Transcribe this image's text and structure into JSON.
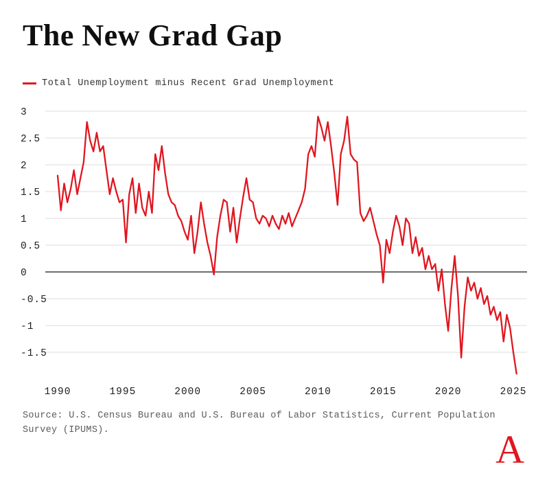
{
  "title": "The New Grad Gap",
  "legend": {
    "label": "Total Unemployment minus Recent Grad Unemployment"
  },
  "source": {
    "text": "Source: U.S. Census Bureau and U.S. Bureau of Labor Statistics, Current Population Survey (IPUMS)."
  },
  "logo": {
    "letter": "A"
  },
  "colors": {
    "line": "#e0161f",
    "grid": "#dcdcdc",
    "zero_line": "#3d3d3d",
    "axis_text": "#1c1c1c",
    "source_text": "#5a5a5a"
  },
  "chart_data": {
    "type": "line",
    "title": "The New Grad Gap",
    "xlabel": "",
    "ylabel": "",
    "xlim": [
      1989.5,
      2026
    ],
    "ylim": [
      -2,
      3
    ],
    "x_ticks": [
      1990,
      1995,
      2000,
      2005,
      2010,
      2015,
      2020,
      2025
    ],
    "y_ticks": [
      3,
      2.5,
      2,
      1.5,
      1,
      0.5,
      0,
      -0.5,
      -1,
      -1.5
    ],
    "grid": "horizontal",
    "zero_line": true,
    "legend_position": "top-left",
    "series": [
      {
        "name": "Total Unemployment minus Recent Grad Unemployment",
        "color": "#e0161f",
        "points": [
          [
            1990,
            1.8
          ],
          [
            1990.25,
            1.15
          ],
          [
            1990.5,
            1.65
          ],
          [
            1990.75,
            1.3
          ],
          [
            1991,
            1.55
          ],
          [
            1991.25,
            1.9
          ],
          [
            1991.5,
            1.45
          ],
          [
            1991.75,
            1.75
          ],
          [
            1992,
            2.05
          ],
          [
            1992.25,
            2.8
          ],
          [
            1992.5,
            2.45
          ],
          [
            1992.75,
            2.25
          ],
          [
            1993,
            2.6
          ],
          [
            1993.25,
            2.25
          ],
          [
            1993.5,
            2.35
          ],
          [
            1993.75,
            1.9
          ],
          [
            1994,
            1.45
          ],
          [
            1994.25,
            1.75
          ],
          [
            1994.5,
            1.5
          ],
          [
            1994.75,
            1.3
          ],
          [
            1995,
            1.35
          ],
          [
            1995.25,
            0.55
          ],
          [
            1995.5,
            1.45
          ],
          [
            1995.75,
            1.75
          ],
          [
            1996,
            1.1
          ],
          [
            1996.25,
            1.65
          ],
          [
            1996.5,
            1.2
          ],
          [
            1996.75,
            1.05
          ],
          [
            1997,
            1.5
          ],
          [
            1997.25,
            1.1
          ],
          [
            1997.5,
            2.2
          ],
          [
            1997.75,
            1.9
          ],
          [
            1998,
            2.35
          ],
          [
            1998.25,
            1.85
          ],
          [
            1998.5,
            1.45
          ],
          [
            1998.75,
            1.3
          ],
          [
            1999,
            1.25
          ],
          [
            1999.25,
            1.05
          ],
          [
            1999.5,
            0.95
          ],
          [
            1999.75,
            0.75
          ],
          [
            2000,
            0.6
          ],
          [
            2000.25,
            1.05
          ],
          [
            2000.5,
            0.35
          ],
          [
            2000.75,
            0.75
          ],
          [
            2001,
            1.3
          ],
          [
            2001.25,
            0.9
          ],
          [
            2001.5,
            0.55
          ],
          [
            2001.75,
            0.3
          ],
          [
            2002,
            -0.05
          ],
          [
            2002.25,
            0.65
          ],
          [
            2002.5,
            1.05
          ],
          [
            2002.75,
            1.35
          ],
          [
            2003,
            1.3
          ],
          [
            2003.25,
            0.75
          ],
          [
            2003.5,
            1.2
          ],
          [
            2003.75,
            0.55
          ],
          [
            2004,
            1.0
          ],
          [
            2004.25,
            1.4
          ],
          [
            2004.5,
            1.75
          ],
          [
            2004.75,
            1.35
          ],
          [
            2005,
            1.3
          ],
          [
            2005.25,
            1.0
          ],
          [
            2005.5,
            0.9
          ],
          [
            2005.75,
            1.05
          ],
          [
            2006,
            1.0
          ],
          [
            2006.25,
            0.85
          ],
          [
            2006.5,
            1.05
          ],
          [
            2006.75,
            0.9
          ],
          [
            2007,
            0.8
          ],
          [
            2007.25,
            1.05
          ],
          [
            2007.5,
            0.9
          ],
          [
            2007.75,
            1.1
          ],
          [
            2008,
            0.85
          ],
          [
            2008.25,
            1.0
          ],
          [
            2008.5,
            1.15
          ],
          [
            2008.75,
            1.3
          ],
          [
            2009,
            1.55
          ],
          [
            2009.25,
            2.2
          ],
          [
            2009.5,
            2.35
          ],
          [
            2009.75,
            2.15
          ],
          [
            2010,
            2.9
          ],
          [
            2010.25,
            2.7
          ],
          [
            2010.5,
            2.45
          ],
          [
            2010.75,
            2.8
          ],
          [
            2011,
            2.35
          ],
          [
            2011.25,
            1.85
          ],
          [
            2011.5,
            1.25
          ],
          [
            2011.75,
            2.2
          ],
          [
            2012,
            2.45
          ],
          [
            2012.25,
            2.9
          ],
          [
            2012.5,
            2.2
          ],
          [
            2012.75,
            2.1
          ],
          [
            2013,
            2.05
          ],
          [
            2013.25,
            1.1
          ],
          [
            2013.5,
            0.95
          ],
          [
            2013.75,
            1.05
          ],
          [
            2014,
            1.2
          ],
          [
            2014.25,
            0.95
          ],
          [
            2014.5,
            0.7
          ],
          [
            2014.75,
            0.5
          ],
          [
            2015,
            -0.2
          ],
          [
            2015.25,
            0.6
          ],
          [
            2015.5,
            0.35
          ],
          [
            2015.75,
            0.75
          ],
          [
            2016,
            1.05
          ],
          [
            2016.25,
            0.85
          ],
          [
            2016.5,
            0.5
          ],
          [
            2016.75,
            1.0
          ],
          [
            2017,
            0.9
          ],
          [
            2017.25,
            0.35
          ],
          [
            2017.5,
            0.65
          ],
          [
            2017.75,
            0.3
          ],
          [
            2018,
            0.45
          ],
          [
            2018.25,
            0.05
          ],
          [
            2018.5,
            0.3
          ],
          [
            2018.75,
            0.05
          ],
          [
            2019,
            0.15
          ],
          [
            2019.25,
            -0.35
          ],
          [
            2019.5,
            0.05
          ],
          [
            2019.75,
            -0.6
          ],
          [
            2020,
            -1.1
          ],
          [
            2020.25,
            -0.3
          ],
          [
            2020.5,
            0.3
          ],
          [
            2020.75,
            -0.45
          ],
          [
            2021,
            -1.6
          ],
          [
            2021.25,
            -0.65
          ],
          [
            2021.5,
            -0.1
          ],
          [
            2021.75,
            -0.35
          ],
          [
            2022,
            -0.2
          ],
          [
            2022.25,
            -0.5
          ],
          [
            2022.5,
            -0.3
          ],
          [
            2022.75,
            -0.6
          ],
          [
            2023,
            -0.45
          ],
          [
            2023.25,
            -0.8
          ],
          [
            2023.5,
            -0.65
          ],
          [
            2023.75,
            -0.9
          ],
          [
            2024,
            -0.75
          ],
          [
            2024.25,
            -1.3
          ],
          [
            2024.5,
            -0.8
          ],
          [
            2024.75,
            -1.05
          ],
          [
            2025,
            -1.5
          ],
          [
            2025.25,
            -1.9
          ]
        ]
      }
    ]
  }
}
